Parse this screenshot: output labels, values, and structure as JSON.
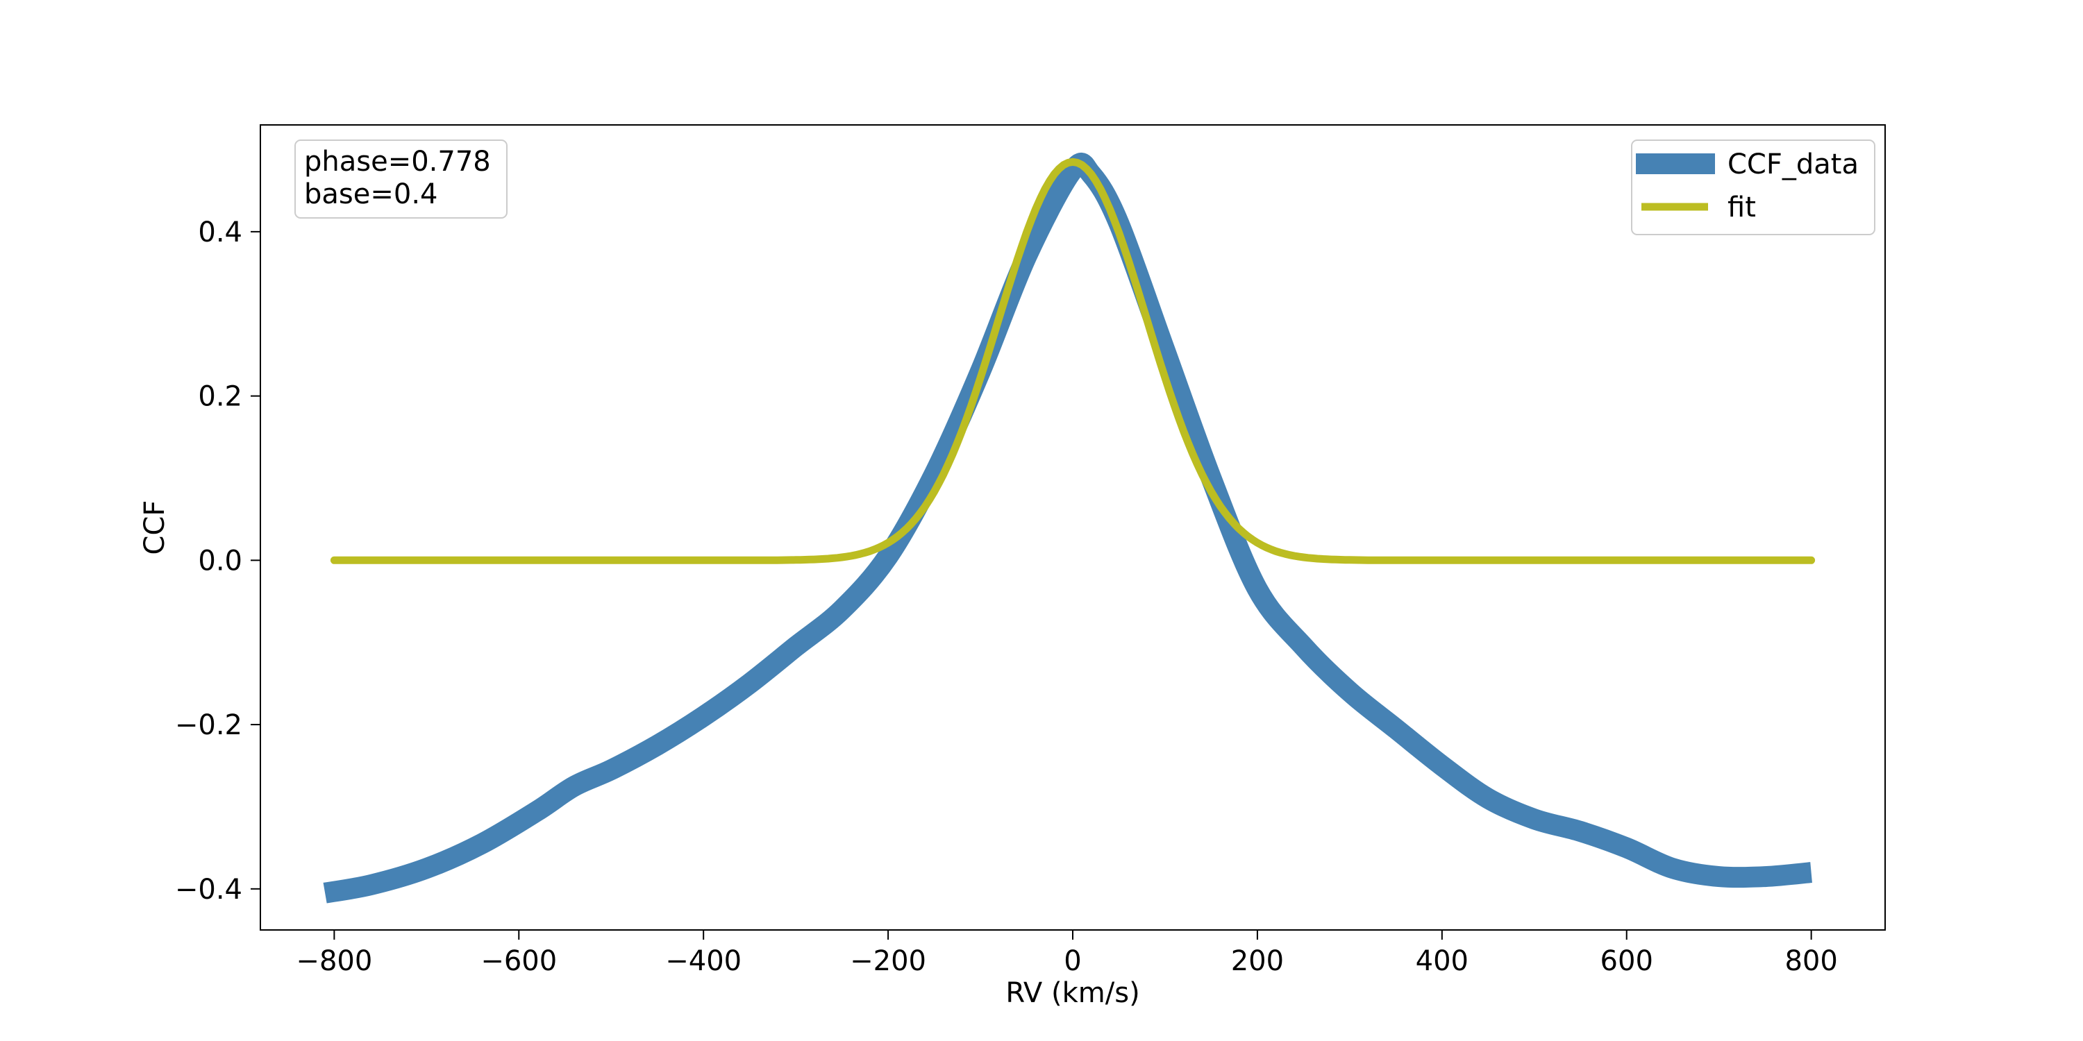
{
  "chart_data": {
    "type": "line",
    "title": "",
    "xlabel": "RV (km/s)",
    "ylabel": "CCF",
    "xlim": [
      -880,
      880
    ],
    "ylim": [
      -0.45,
      0.53
    ],
    "xticks": [
      -800,
      -600,
      -400,
      -200,
      0,
      200,
      400,
      600,
      800
    ],
    "xtick_labels": [
      "−800",
      "−600",
      "−400",
      "−200",
      "0",
      "200",
      "400",
      "600",
      "800"
    ],
    "yticks": [
      -0.4,
      -0.2,
      0.0,
      0.2,
      0.4
    ],
    "ytick_labels": [
      "−0.4",
      "−0.2",
      "0.0",
      "0.2",
      "0.4"
    ],
    "grid": false,
    "legend_position": "top-right",
    "annotation": {
      "position": "top-left",
      "lines": [
        "phase=0.778",
        "base=0.4"
      ]
    },
    "series": [
      {
        "name": "CCF_data",
        "color": "#4682b4",
        "style": "thick",
        "x": [
          -810,
          -760,
          -700,
          -640,
          -580,
          -540,
          -500,
          -450,
          -400,
          -350,
          -300,
          -250,
          -200,
          -150,
          -100,
          -50,
          0,
          20,
          50,
          100,
          150,
          200,
          250,
          300,
          350,
          400,
          450,
          500,
          550,
          600,
          650,
          700,
          750,
          800
        ],
        "y": [
          -0.405,
          -0.395,
          -0.375,
          -0.345,
          -0.305,
          -0.275,
          -0.255,
          -0.225,
          -0.19,
          -0.15,
          -0.105,
          -0.06,
          0.005,
          0.105,
          0.23,
          0.37,
          0.475,
          0.47,
          0.41,
          0.255,
          0.1,
          -0.035,
          -0.105,
          -0.16,
          -0.205,
          -0.25,
          -0.29,
          -0.315,
          -0.33,
          -0.35,
          -0.375,
          -0.385,
          -0.385,
          -0.38
        ]
      },
      {
        "name": "fit",
        "color": "#bcbd22",
        "style": "thin",
        "model": "gaussian",
        "amplitude": 0.485,
        "center": 0,
        "sigma": 80,
        "x_range": [
          -800,
          800
        ]
      }
    ]
  }
}
